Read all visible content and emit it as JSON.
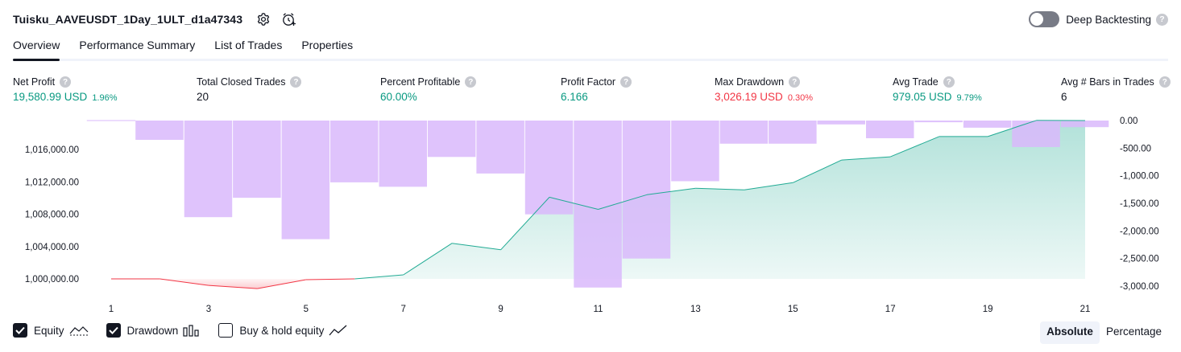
{
  "header": {
    "title": "Tuisku_AAVEUSDT_1Day_1ULT_d1a47343",
    "deep_backtesting_label": "Deep Backtesting",
    "help_glyph": "?"
  },
  "tabs": [
    {
      "label": "Overview",
      "active": true
    },
    {
      "label": "Performance Summary",
      "active": false
    },
    {
      "label": "List of Trades",
      "active": false
    },
    {
      "label": "Properties",
      "active": false
    }
  ],
  "metrics": [
    {
      "label": "Net Profit",
      "value": "19,580.99 USD",
      "pct": "1.96%",
      "tone": "pos"
    },
    {
      "label": "Total Closed Trades",
      "value": "20",
      "pct": "",
      "tone": "neutral"
    },
    {
      "label": "Percent Profitable",
      "value": "60.00%",
      "pct": "",
      "tone": "pos"
    },
    {
      "label": "Profit Factor",
      "value": "6.166",
      "pct": "",
      "tone": "pos"
    },
    {
      "label": "Max Drawdown",
      "value": "3,026.19 USD",
      "pct": "0.30%",
      "tone": "neg"
    },
    {
      "label": "Avg Trade",
      "value": "979.05 USD",
      "pct": "9.79%",
      "tone": "pos"
    },
    {
      "label": "Avg # Bars in Trades",
      "value": "6",
      "pct": "",
      "tone": "neutral"
    }
  ],
  "legend": {
    "equity_label": "Equity",
    "drawdown_label": "Drawdown",
    "buyhold_label": "Buy & hold equity",
    "equity_checked": true,
    "drawdown_checked": true,
    "buyhold_checked": false
  },
  "mode": {
    "absolute_label": "Absolute",
    "percentage_label": "Percentage",
    "selected": "absolute"
  },
  "colors": {
    "positive": "#089981",
    "negative": "#f23645",
    "drawdown_bar": "#d9b8fb",
    "equity_line": "#22ab94"
  },
  "chart_data": {
    "type": "area",
    "x": [
      1,
      2,
      3,
      4,
      5,
      6,
      7,
      8,
      9,
      10,
      11,
      12,
      13,
      14,
      15,
      16,
      17,
      18,
      19,
      20,
      21
    ],
    "x_tick_labels": [
      "1",
      "3",
      "5",
      "7",
      "9",
      "11",
      "13",
      "15",
      "17",
      "19",
      "21"
    ],
    "series": [
      {
        "name": "Equity",
        "axis": "left",
        "values": [
          1000000,
          1000000,
          999200,
          998800,
          999900,
          1000000,
          1000500,
          1004400,
          1003600,
          1010100,
          1008600,
          1010400,
          1011200,
          1011000,
          1011900,
          1014700,
          1015100,
          1017600,
          1017600,
          1019600,
          1019581
        ]
      },
      {
        "name": "Drawdown",
        "axis": "right",
        "type": "bar",
        "values": [
          0,
          -350,
          -1750,
          -1400,
          -2150,
          -1120,
          -1200,
          -660,
          -960,
          -1700,
          -3026,
          -2500,
          -1100,
          -420,
          -420,
          -70,
          -320,
          -30,
          -130,
          -480,
          -120
        ]
      }
    ],
    "left_axis": {
      "ticks": [
        "1,000,000.00",
        "1,004,000.00",
        "1,008,000.00",
        "1,012,000.00",
        "1,016,000.00"
      ],
      "range": [
        997600,
        1020200
      ]
    },
    "right_axis": {
      "ticks": [
        "0.00",
        "-500.00",
        "-1,000.00",
        "-1,500.00",
        "-2,000.00",
        "-2,500.00",
        "-3,000.00"
      ],
      "range": [
        -3000,
        0
      ]
    },
    "grid": false
  }
}
